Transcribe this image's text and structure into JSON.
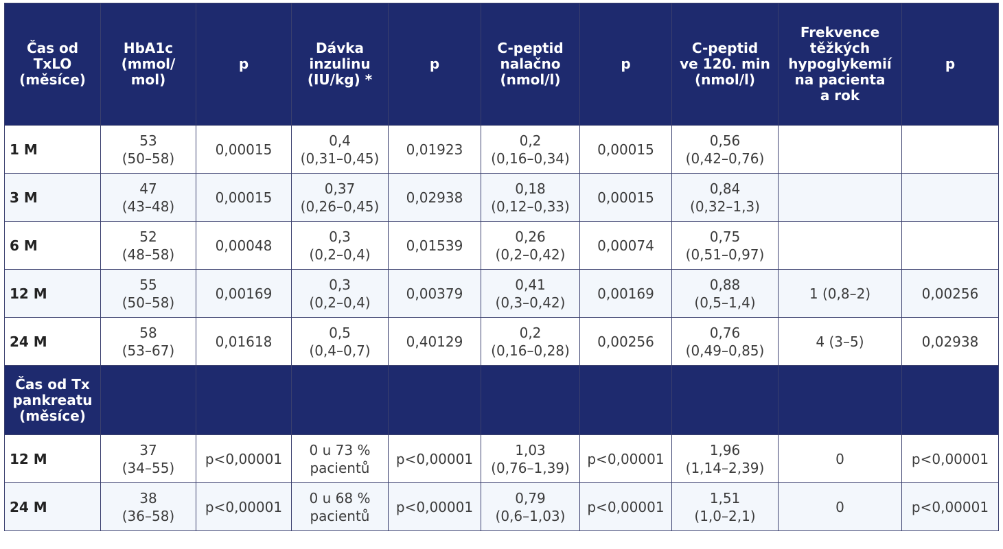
{
  "headers": [
    "Čas od\nTxLO\n(měsíce)",
    "HbA1c\n(mmol/\nmol)",
    "p",
    "Dávka\ninzulinu\n(IU/kg) *",
    "p",
    "C-peptid\nnalačno\n(nmol/l)",
    "p",
    "C-peptid\nve 120. min\n(nmol/l)",
    "Frekvence\ntěžkých\nhypoglykemií\nna pacienta\na rok",
    "p"
  ],
  "section1_rows": [
    {
      "label": "1 M",
      "hba1c": [
        "53",
        "(50–58)"
      ],
      "p1": "0,00015",
      "insulin": [
        "0,4",
        "(0,31–0,45)"
      ],
      "p2": "0,01923",
      "cpep_fast": [
        "0,2",
        "(0,16–0,34)"
      ],
      "p3": "0,00015",
      "cpep_120": [
        "0,56",
        "(0,42–0,76)"
      ],
      "hypo": "",
      "p4": ""
    },
    {
      "label": "3 M",
      "hba1c": [
        "47",
        "(43–48)"
      ],
      "p1": "0,00015",
      "insulin": [
        "0,37",
        "(0,26–0,45)"
      ],
      "p2": "0,02938",
      "cpep_fast": [
        "0,18",
        "(0,12–0,33)"
      ],
      "p3": "0,00015",
      "cpep_120": [
        "0,84",
        "(0,32–1,3)"
      ],
      "hypo": "",
      "p4": ""
    },
    {
      "label": "6 M",
      "hba1c": [
        "52",
        "(48–58)"
      ],
      "p1": "0,00048",
      "insulin": [
        "0,3",
        "(0,2–0,4)"
      ],
      "p2": "0,01539",
      "cpep_fast": [
        "0,26",
        "(0,2–0,42)"
      ],
      "p3": "0,00074",
      "cpep_120": [
        "0,75",
        "(0,51–0,97)"
      ],
      "hypo": "",
      "p4": ""
    },
    {
      "label": "12 M",
      "hba1c": [
        "55",
        "(50–58)"
      ],
      "p1": "0,00169",
      "insulin": [
        "0,3",
        "(0,2–0,4)"
      ],
      "p2": "0,00379",
      "cpep_fast": [
        "0,41",
        "(0,3–0,42)"
      ],
      "p3": "0,00169",
      "cpep_120": [
        "0,88",
        "(0,5–1,4)"
      ],
      "hypo": "1 (0,8–2)",
      "p4": "0,00256"
    },
    {
      "label": "24 M",
      "hba1c": [
        "58",
        "(53–67)"
      ],
      "p1": "0,01618",
      "insulin": [
        "0,5",
        "(0,4–0,7)"
      ],
      "p2": "0,40129",
      "cpep_fast": [
        "0,2",
        "(0,16–0,28)"
      ],
      "p3": "0,00256",
      "cpep_120": [
        "0,76",
        "(0,49–0,85)"
      ],
      "hypo": "4 (3–5)",
      "p4": "0,02938"
    }
  ],
  "section2_label": "Čas od Tx\npankreatu\n(měsíce)",
  "section2_rows": [
    {
      "label": "12 M",
      "hba1c": [
        "37",
        "(34–55)"
      ],
      "p1": "p<0,00001",
      "insulin": [
        "0 u 73 %",
        "pacientů"
      ],
      "p2": "p<0,00001",
      "cpep_fast": [
        "1,03",
        "(0,76–1,39)"
      ],
      "p3": "p<0,00001",
      "cpep_120": [
        "1,96",
        "(1,14–2,39)"
      ],
      "hypo": "0",
      "p4": "p<0,00001"
    },
    {
      "label": "24 M",
      "hba1c": [
        "38",
        "(36–58)"
      ],
      "p1": "p<0,00001",
      "insulin": [
        "0 u 68 %",
        "pacientů"
      ],
      "p2": "p<0,00001",
      "cpep_fast": [
        "0,79",
        "(0,6–1,03)"
      ],
      "p3": "p<0,00001",
      "cpep_120": [
        "1,51",
        "(1,0–2,1)"
      ],
      "hypo": "0",
      "p4": "p<0,00001"
    }
  ],
  "colors": {
    "header_bg": "#1e2a6e",
    "alt_row_bg": "#f3f7fc"
  }
}
